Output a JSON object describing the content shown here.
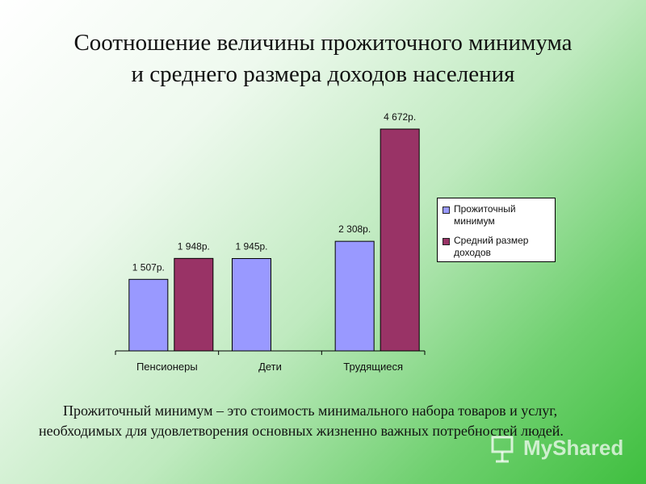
{
  "title_line1": "Соотношение величины прожиточного минимума",
  "title_line2": "и среднего размера доходов населения",
  "chart_data": {
    "type": "bar",
    "categories": [
      "Пенсионеры",
      "Дети",
      "Трудящиеся"
    ],
    "series": [
      {
        "name": "Прожиточный минимум",
        "values": [
          1507,
          1945,
          2308
        ],
        "labels": [
          "1 507р.",
          "1 945р.",
          "2 308р."
        ],
        "color": "#9999ff"
      },
      {
        "name": "Средний размер доходов",
        "values": [
          1948,
          null,
          4672
        ],
        "labels": [
          "1 948р.",
          "",
          "4 672р."
        ],
        "color": "#993366"
      }
    ],
    "ylim": [
      0,
      5000
    ],
    "grid": false,
    "legend_position": "right",
    "title": "",
    "xlabel": "",
    "ylabel": ""
  },
  "caption": "Прожиточный минимум – это стоимость минимального набора товаров и услуг, необходимых для удовлетворения основных жизненно важных потребностей людей.",
  "watermark": "MyShared",
  "watermark_icon": "presentation-board-icon"
}
